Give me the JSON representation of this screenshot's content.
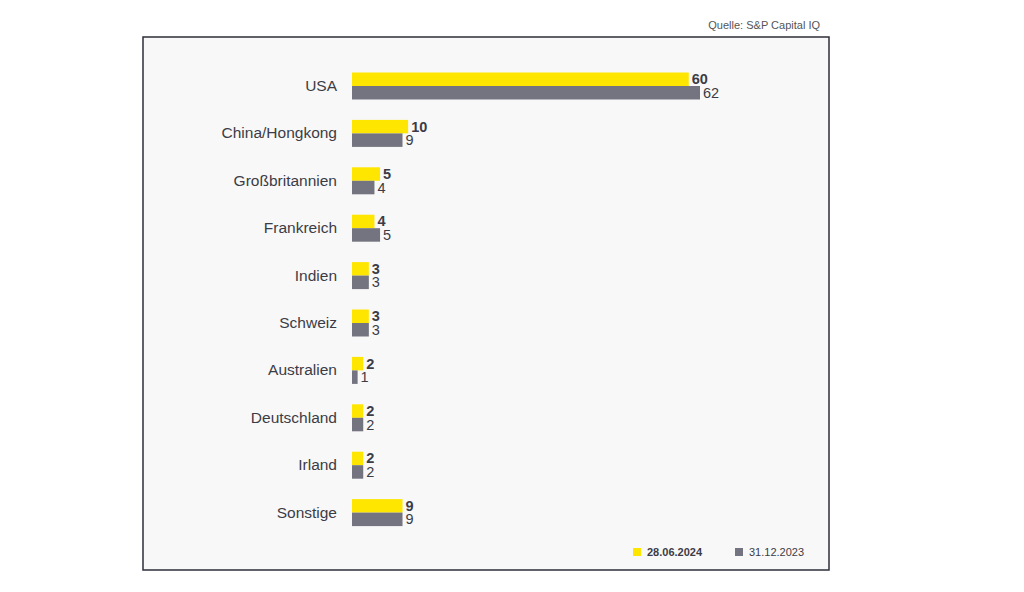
{
  "chart_data": {
    "type": "bar",
    "orientation": "horizontal",
    "source": "Quelle: S&P Capital IQ",
    "categories": [
      "USA",
      "China/Hongkong",
      "Großbritannien",
      "Frankreich",
      "Indien",
      "Schweiz",
      "Australien",
      "Deutschland",
      "Irland",
      "Sonstige"
    ],
    "series": [
      {
        "name": "28.06.2024",
        "color": "#ffe600",
        "values": [
          60,
          10,
          5,
          4,
          3,
          3,
          2,
          2,
          2,
          9
        ]
      },
      {
        "name": "31.12.2023",
        "color": "#747480",
        "values": [
          62,
          9,
          4,
          5,
          3,
          3,
          1,
          2,
          2,
          9
        ]
      }
    ],
    "xlim": [
      0,
      62
    ],
    "grid": false,
    "data_labels": true,
    "tick_labels": "y",
    "legend": "lower right"
  }
}
